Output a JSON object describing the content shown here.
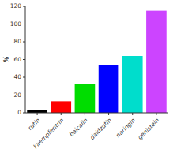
{
  "chart_data": {
    "type": "bar",
    "categories": [
      "rutin",
      "kaempferitrin",
      "baicalin",
      "daidzutin",
      "naringin",
      "genistein"
    ],
    "values": [
      3,
      13,
      32,
      54,
      64,
      115
    ],
    "colors": [
      "#000000",
      "#ff0000",
      "#00dd00",
      "#0000ff",
      "#00ddcc",
      "#cc44ff"
    ],
    "ylabel": "%",
    "ylim": [
      0,
      120
    ],
    "yticks": [
      0,
      20,
      40,
      60,
      80,
      100,
      120
    ],
    "grid": false
  }
}
